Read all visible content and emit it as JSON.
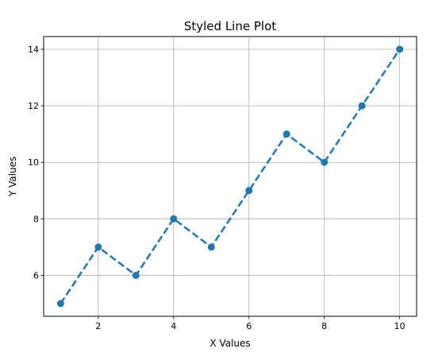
{
  "chart_data": {
    "type": "line",
    "title": "Styled Line Plot",
    "xlabel": "X Values",
    "ylabel": "Y Values",
    "xlim": [
      0.55,
      10.45
    ],
    "ylim": [
      4.55,
      14.45
    ],
    "x_ticks": [
      2,
      4,
      6,
      8,
      10
    ],
    "y_ticks": [
      6,
      8,
      10,
      12,
      14
    ],
    "x_tick_labels": [
      "2",
      "4",
      "6",
      "8",
      "10"
    ],
    "y_tick_labels": [
      "6",
      "8",
      "10",
      "12",
      "14"
    ],
    "grid": true,
    "line_style": "dashed",
    "marker": "circle",
    "color": "#1f77b4",
    "series": [
      {
        "x": [
          1,
          2,
          3,
          4,
          5,
          6,
          7,
          8,
          9,
          10
        ],
        "values": [
          5,
          7,
          6,
          8,
          7,
          9,
          11,
          10,
          12,
          14
        ]
      }
    ]
  }
}
